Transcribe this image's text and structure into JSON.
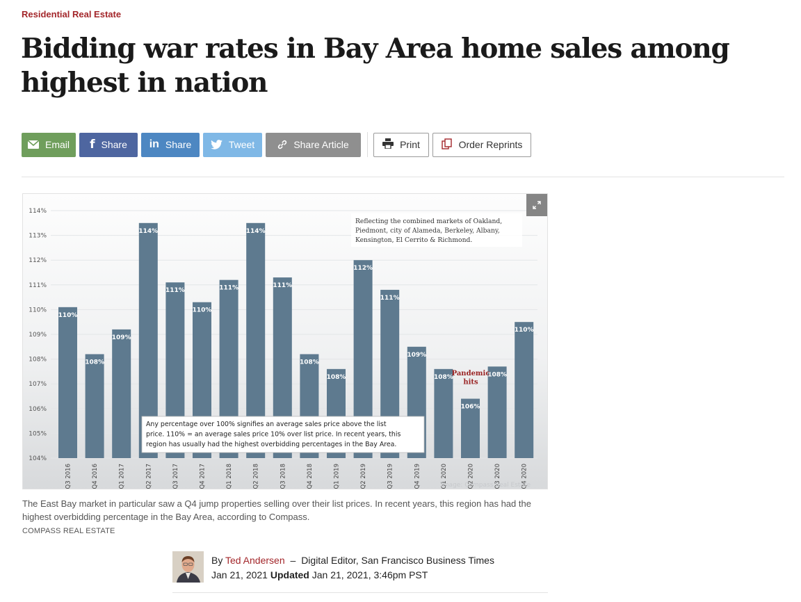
{
  "article": {
    "section": "Residential Real Estate",
    "headline": "Bidding war rates in Bay Area home sales among highest in nation"
  },
  "share": {
    "email": "Email",
    "facebook": "Share",
    "linkedin": "Share",
    "twitter": "Tweet",
    "share_article": "Share Article",
    "print": "Print",
    "reprints": "Order Reprints"
  },
  "colors": {
    "accent": "#a3262a",
    "email": "#6f9e5c",
    "facebook": "#4e66a0",
    "linkedin": "#4d87c2",
    "twitter": "#7fb8e6",
    "share_article": "#8f8f8f",
    "bar": "#5e7a8f"
  },
  "chart_data": {
    "type": "bar",
    "categories": [
      "Q3 2016",
      "Q4 2016",
      "Q1 2017",
      "Q2 2017",
      "Q3 2017",
      "Q4 2017",
      "Q1 2018",
      "Q2 2018",
      "Q3 2018",
      "Q4 2018",
      "Q1 2019",
      "Q2 2019",
      "Q3 2019",
      "Q4 2019",
      "Q1 2020",
      "Q2 2020",
      "Q3 2020",
      "Q4 2020"
    ],
    "values": [
      110.1,
      108.2,
      109.2,
      113.5,
      111.1,
      110.3,
      111.2,
      113.5,
      111.3,
      108.2,
      107.6,
      112.0,
      110.8,
      108.5,
      107.6,
      106.4,
      107.7,
      109.5
    ],
    "value_labels": [
      "110%",
      "108%",
      "109%",
      "114%",
      "111%",
      "110%",
      "111%",
      "114%",
      "111%",
      "108%",
      "108%",
      "112%",
      "111%",
      "109%",
      "108%",
      "106%",
      "108%",
      "110%"
    ],
    "y_ticks": [
      "104%",
      "105%",
      "106%",
      "107%",
      "108%",
      "109%",
      "110%",
      "111%",
      "112%",
      "113%",
      "114%"
    ],
    "ylim": [
      104,
      114
    ],
    "grid": true,
    "note_top": [
      "Reflecting the combined markets of Oakland,",
      "Piedmont, city of Alameda, Berkeley, Albany,",
      "Kensington, El Cerrito & Richmond."
    ],
    "note_bottom": [
      "Any percentage over 100% signifies an average sales price above the list",
      "price. 110% = an average sales price 10% over list price. In recent years, this",
      "region has usually had the highest overbidding percentages in the Bay Area."
    ],
    "annotation": [
      "Pandemic",
      "hits"
    ],
    "watermark": "Image: Compass Real Estate"
  },
  "figure": {
    "caption": "The East Bay market in particular saw a Q4 jump properties selling over their list prices. In recent years, this region has had the highest overbidding percentage in the Bay Area, according to Compass.",
    "credit": "COMPASS REAL ESTATE"
  },
  "byline": {
    "by": "By",
    "author": "Ted Andersen",
    "dash": "–",
    "role": "Digital Editor, San Francisco Business Times",
    "published": "Jan 21, 2021",
    "updated_label": "Updated",
    "updated": "Jan 21, 2021, 3:46pm PST"
  }
}
